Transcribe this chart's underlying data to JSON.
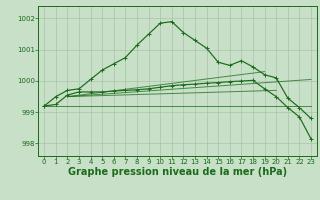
{
  "bg_color": "#c8dfc8",
  "grid_color": "#a8c4a8",
  "line_color": "#1a6b1a",
  "xlabel": "Graphe pression niveau de la mer (hPa)",
  "xlabel_fontsize": 7.0,
  "ylim": [
    997.6,
    1002.4
  ],
  "xlim": [
    -0.5,
    23.5
  ],
  "yticks": [
    998,
    999,
    1000,
    1001,
    1002
  ],
  "xticks": [
    0,
    1,
    2,
    3,
    4,
    5,
    6,
    7,
    8,
    9,
    10,
    11,
    12,
    13,
    14,
    15,
    16,
    17,
    18,
    19,
    20,
    21,
    22,
    23
  ],
  "series_main": {
    "x": [
      0,
      1,
      2,
      3,
      4,
      5,
      6,
      7,
      8,
      9,
      10,
      11,
      12,
      13,
      14,
      15,
      16,
      17,
      18,
      19,
      20,
      21,
      22,
      23
    ],
    "y": [
      999.2,
      999.5,
      999.7,
      999.75,
      1000.05,
      1000.35,
      1000.55,
      1000.75,
      1001.15,
      1001.5,
      1001.85,
      1001.9,
      1001.55,
      1001.3,
      1001.05,
      1000.6,
      1000.5,
      1000.65,
      1000.45,
      1000.2,
      1000.1,
      999.45,
      999.15,
      998.8
    ]
  },
  "series_flat1": {
    "x": [
      0,
      23
    ],
    "y": [
      999.2,
      999.2
    ]
  },
  "series_trend1": {
    "x": [
      2,
      23
    ],
    "y": [
      999.5,
      1000.05
    ]
  },
  "series_trend2": {
    "x": [
      2,
      20
    ],
    "y": [
      999.5,
      999.7
    ]
  },
  "series_trend3": {
    "x": [
      2,
      19
    ],
    "y": [
      999.5,
      1000.3
    ]
  },
  "series_low": {
    "x": [
      0,
      1,
      2,
      3,
      4,
      5,
      6,
      7,
      8,
      9,
      10,
      11,
      12,
      13,
      14,
      15,
      16,
      17,
      18,
      19,
      20,
      21,
      22,
      23
    ],
    "y": [
      999.2,
      999.25,
      999.55,
      999.65,
      999.65,
      999.65,
      999.68,
      999.7,
      999.72,
      999.75,
      999.8,
      999.85,
      999.88,
      999.9,
      999.93,
      999.95,
      999.98,
      1000.0,
      1000.02,
      999.75,
      999.5,
      999.15,
      998.85,
      998.15
    ]
  }
}
